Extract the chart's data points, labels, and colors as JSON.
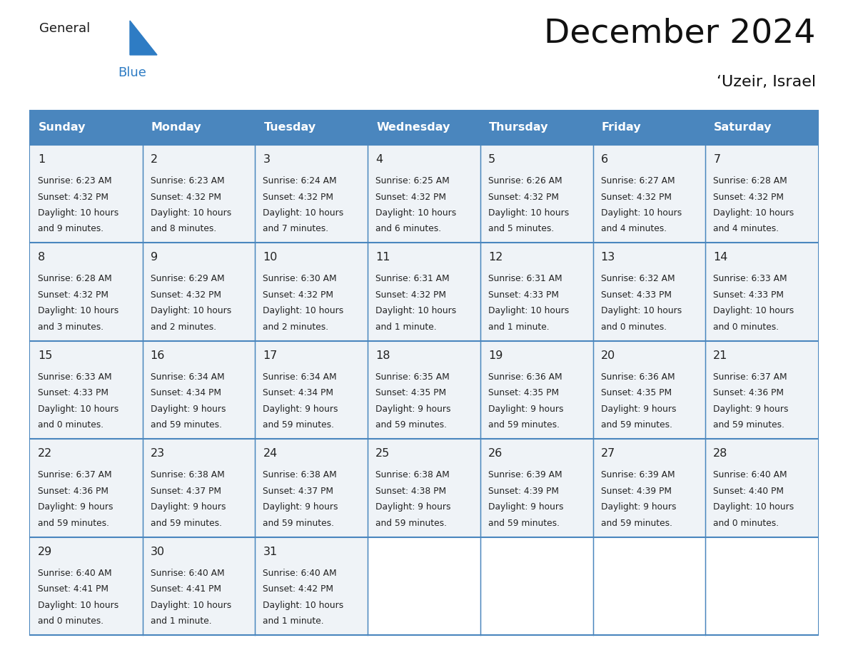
{
  "title": "December 2024",
  "subtitle": "‘Uzeir, Israel",
  "header_bg": "#4a86be",
  "header_text_color": "#ffffff",
  "days_of_week": [
    "Sunday",
    "Monday",
    "Tuesday",
    "Wednesday",
    "Thursday",
    "Friday",
    "Saturday"
  ],
  "cell_bg": "#eff3f7",
  "empty_cell_bg": "#ffffff",
  "border_color": "#4a86be",
  "text_color": "#222222",
  "logo_general_color": "#1a1a1a",
  "logo_blue_color": "#2e7cc4",
  "calendar_data": [
    [
      {
        "day": 1,
        "sunrise": "6:23 AM",
        "sunset": "4:32 PM",
        "daylight": "10 hours",
        "daylight2": "and 9 minutes."
      },
      {
        "day": 2,
        "sunrise": "6:23 AM",
        "sunset": "4:32 PM",
        "daylight": "10 hours",
        "daylight2": "and 8 minutes."
      },
      {
        "day": 3,
        "sunrise": "6:24 AM",
        "sunset": "4:32 PM",
        "daylight": "10 hours",
        "daylight2": "and 7 minutes."
      },
      {
        "day": 4,
        "sunrise": "6:25 AM",
        "sunset": "4:32 PM",
        "daylight": "10 hours",
        "daylight2": "and 6 minutes."
      },
      {
        "day": 5,
        "sunrise": "6:26 AM",
        "sunset": "4:32 PM",
        "daylight": "10 hours",
        "daylight2": "and 5 minutes."
      },
      {
        "day": 6,
        "sunrise": "6:27 AM",
        "sunset": "4:32 PM",
        "daylight": "10 hours",
        "daylight2": "and 4 minutes."
      },
      {
        "day": 7,
        "sunrise": "6:28 AM",
        "sunset": "4:32 PM",
        "daylight": "10 hours",
        "daylight2": "and 4 minutes."
      }
    ],
    [
      {
        "day": 8,
        "sunrise": "6:28 AM",
        "sunset": "4:32 PM",
        "daylight": "10 hours",
        "daylight2": "and 3 minutes."
      },
      {
        "day": 9,
        "sunrise": "6:29 AM",
        "sunset": "4:32 PM",
        "daylight": "10 hours",
        "daylight2": "and 2 minutes."
      },
      {
        "day": 10,
        "sunrise": "6:30 AM",
        "sunset": "4:32 PM",
        "daylight": "10 hours",
        "daylight2": "and 2 minutes."
      },
      {
        "day": 11,
        "sunrise": "6:31 AM",
        "sunset": "4:32 PM",
        "daylight": "10 hours",
        "daylight2": "and 1 minute."
      },
      {
        "day": 12,
        "sunrise": "6:31 AM",
        "sunset": "4:33 PM",
        "daylight": "10 hours",
        "daylight2": "and 1 minute."
      },
      {
        "day": 13,
        "sunrise": "6:32 AM",
        "sunset": "4:33 PM",
        "daylight": "10 hours",
        "daylight2": "and 0 minutes."
      },
      {
        "day": 14,
        "sunrise": "6:33 AM",
        "sunset": "4:33 PM",
        "daylight": "10 hours",
        "daylight2": "and 0 minutes."
      }
    ],
    [
      {
        "day": 15,
        "sunrise": "6:33 AM",
        "sunset": "4:33 PM",
        "daylight": "10 hours",
        "daylight2": "and 0 minutes."
      },
      {
        "day": 16,
        "sunrise": "6:34 AM",
        "sunset": "4:34 PM",
        "daylight": "9 hours",
        "daylight2": "and 59 minutes."
      },
      {
        "day": 17,
        "sunrise": "6:34 AM",
        "sunset": "4:34 PM",
        "daylight": "9 hours",
        "daylight2": "and 59 minutes."
      },
      {
        "day": 18,
        "sunrise": "6:35 AM",
        "sunset": "4:35 PM",
        "daylight": "9 hours",
        "daylight2": "and 59 minutes."
      },
      {
        "day": 19,
        "sunrise": "6:36 AM",
        "sunset": "4:35 PM",
        "daylight": "9 hours",
        "daylight2": "and 59 minutes."
      },
      {
        "day": 20,
        "sunrise": "6:36 AM",
        "sunset": "4:35 PM",
        "daylight": "9 hours",
        "daylight2": "and 59 minutes."
      },
      {
        "day": 21,
        "sunrise": "6:37 AM",
        "sunset": "4:36 PM",
        "daylight": "9 hours",
        "daylight2": "and 59 minutes."
      }
    ],
    [
      {
        "day": 22,
        "sunrise": "6:37 AM",
        "sunset": "4:36 PM",
        "daylight": "9 hours",
        "daylight2": "and 59 minutes."
      },
      {
        "day": 23,
        "sunrise": "6:38 AM",
        "sunset": "4:37 PM",
        "daylight": "9 hours",
        "daylight2": "and 59 minutes."
      },
      {
        "day": 24,
        "sunrise": "6:38 AM",
        "sunset": "4:37 PM",
        "daylight": "9 hours",
        "daylight2": "and 59 minutes."
      },
      {
        "day": 25,
        "sunrise": "6:38 AM",
        "sunset": "4:38 PM",
        "daylight": "9 hours",
        "daylight2": "and 59 minutes."
      },
      {
        "day": 26,
        "sunrise": "6:39 AM",
        "sunset": "4:39 PM",
        "daylight": "9 hours",
        "daylight2": "and 59 minutes."
      },
      {
        "day": 27,
        "sunrise": "6:39 AM",
        "sunset": "4:39 PM",
        "daylight": "9 hours",
        "daylight2": "and 59 minutes."
      },
      {
        "day": 28,
        "sunrise": "6:40 AM",
        "sunset": "4:40 PM",
        "daylight": "10 hours",
        "daylight2": "and 0 minutes."
      }
    ],
    [
      {
        "day": 29,
        "sunrise": "6:40 AM",
        "sunset": "4:41 PM",
        "daylight": "10 hours",
        "daylight2": "and 0 minutes."
      },
      {
        "day": 30,
        "sunrise": "6:40 AM",
        "sunset": "4:41 PM",
        "daylight": "10 hours",
        "daylight2": "and 1 minute."
      },
      {
        "day": 31,
        "sunrise": "6:40 AM",
        "sunset": "4:42 PM",
        "daylight": "10 hours",
        "daylight2": "and 1 minute."
      },
      null,
      null,
      null,
      null
    ]
  ]
}
